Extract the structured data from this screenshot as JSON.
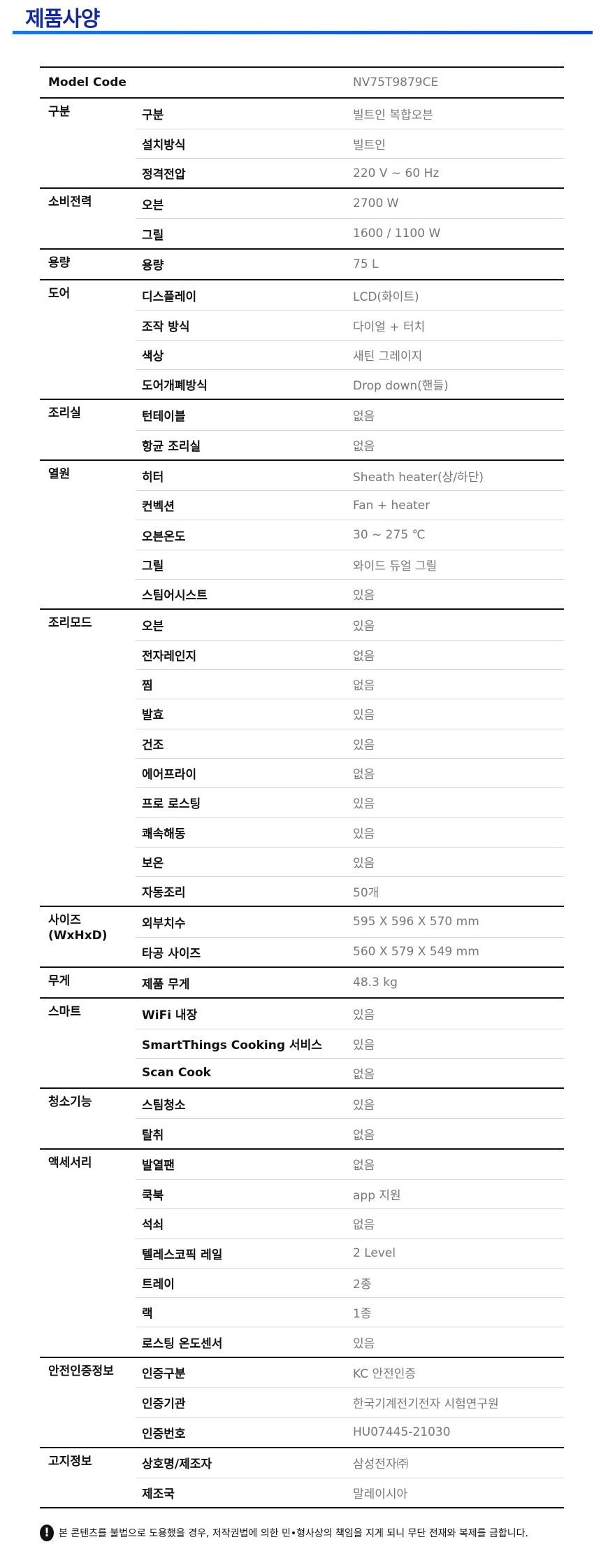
{
  "title": "제품사양",
  "model": {
    "label": "Model Code",
    "value": "NV75T9879CE"
  },
  "groups": [
    {
      "label": "구분",
      "rows": [
        [
          "구분",
          "빌트인 복합오븐"
        ],
        [
          "설치방식",
          "빌트인"
        ],
        [
          "정격전압",
          "220 V ~ 60 Hz"
        ]
      ]
    },
    {
      "label": "소비전력",
      "rows": [
        [
          "오븐",
          "2700 W"
        ],
        [
          "그릴",
          "1600 / 1100 W"
        ]
      ]
    },
    {
      "label": "용량",
      "rows": [
        [
          "용량",
          "75 L"
        ]
      ]
    },
    {
      "label": "도어",
      "rows": [
        [
          "디스플레이",
          "LCD(화이트)"
        ],
        [
          "조작 방식",
          "다이얼 + 터치"
        ],
        [
          "색상",
          "새틴 그레이지"
        ],
        [
          "도어개폐방식",
          "Drop down(핸들)"
        ]
      ]
    },
    {
      "label": "조리실",
      "rows": [
        [
          "턴테이블",
          "없음"
        ],
        [
          "항균 조리실",
          "없음"
        ]
      ]
    },
    {
      "label": "열원",
      "rows": [
        [
          "히터",
          "Sheath heater(상/하단)"
        ],
        [
          "컨벡션",
          "Fan + heater"
        ],
        [
          "오븐온도",
          "30 ~ 275 ℃"
        ],
        [
          "그릴",
          "와이드 듀얼 그릴"
        ],
        [
          "스팀어시스트",
          "있음"
        ]
      ]
    },
    {
      "label": "조리모드",
      "rows": [
        [
          "오븐",
          "있음"
        ],
        [
          "전자레인지",
          "없음"
        ],
        [
          "찜",
          "없음"
        ],
        [
          "발효",
          "있음"
        ],
        [
          "건조",
          "있음"
        ],
        [
          "에어프라이",
          "없음"
        ],
        [
          "프로 로스팅",
          "있음"
        ],
        [
          "쾌속해동",
          "있음"
        ],
        [
          "보온",
          "있음"
        ],
        [
          "자동조리",
          "50개"
        ]
      ]
    },
    {
      "label": "사이즈\n(WxHxD)",
      "rows": [
        [
          "외부치수",
          "595 X 596 X 570 mm"
        ],
        [
          "타공 사이즈",
          "560 X 579 X 549 mm"
        ]
      ]
    },
    {
      "label": "무게",
      "rows": [
        [
          "제품 무게",
          "48.3 kg"
        ]
      ]
    },
    {
      "label": "스마트",
      "rows": [
        [
          "WiFi 내장",
          "있음"
        ],
        [
          "SmartThings Cooking 서비스",
          "있음"
        ],
        [
          "Scan Cook",
          "없음"
        ]
      ]
    },
    {
      "label": "청소기능",
      "rows": [
        [
          "스팀청소",
          "있음"
        ],
        [
          "탈취",
          "없음"
        ]
      ]
    },
    {
      "label": "액세서리",
      "rows": [
        [
          "발열팬",
          "없음"
        ],
        [
          "쿡북",
          "app 지원"
        ],
        [
          "석쇠",
          "없음"
        ],
        [
          "텔레스코픽 레일",
          "2 Level"
        ],
        [
          "트레이",
          "2종"
        ],
        [
          "랙",
          "1종"
        ],
        [
          "로스팅 온도센서",
          "있음"
        ]
      ]
    },
    {
      "label": "안전인증정보",
      "rows": [
        [
          "인증구분",
          "KC 안전인증"
        ],
        [
          "인증기관",
          "한국기계전기전자 시험연구원"
        ],
        [
          "인증번호",
          "HU07445-21030"
        ]
      ]
    },
    {
      "label": "고지정보",
      "rows": [
        [
          "상호명/제조자",
          "삼성전자㈜"
        ],
        [
          "제조국",
          "말레이시아"
        ]
      ]
    }
  ],
  "notice": {
    "icon": "exclamation-circle-icon",
    "text": "본 콘텐츠를 불법으로 도용했을 경우, 저작권법에 의한 민•형사상의 책임을 지게 되니 무단 전재와 복제를 금합니다."
  },
  "colors": {
    "title": "#1428a0",
    "accent_line": "#1a78de"
  }
}
